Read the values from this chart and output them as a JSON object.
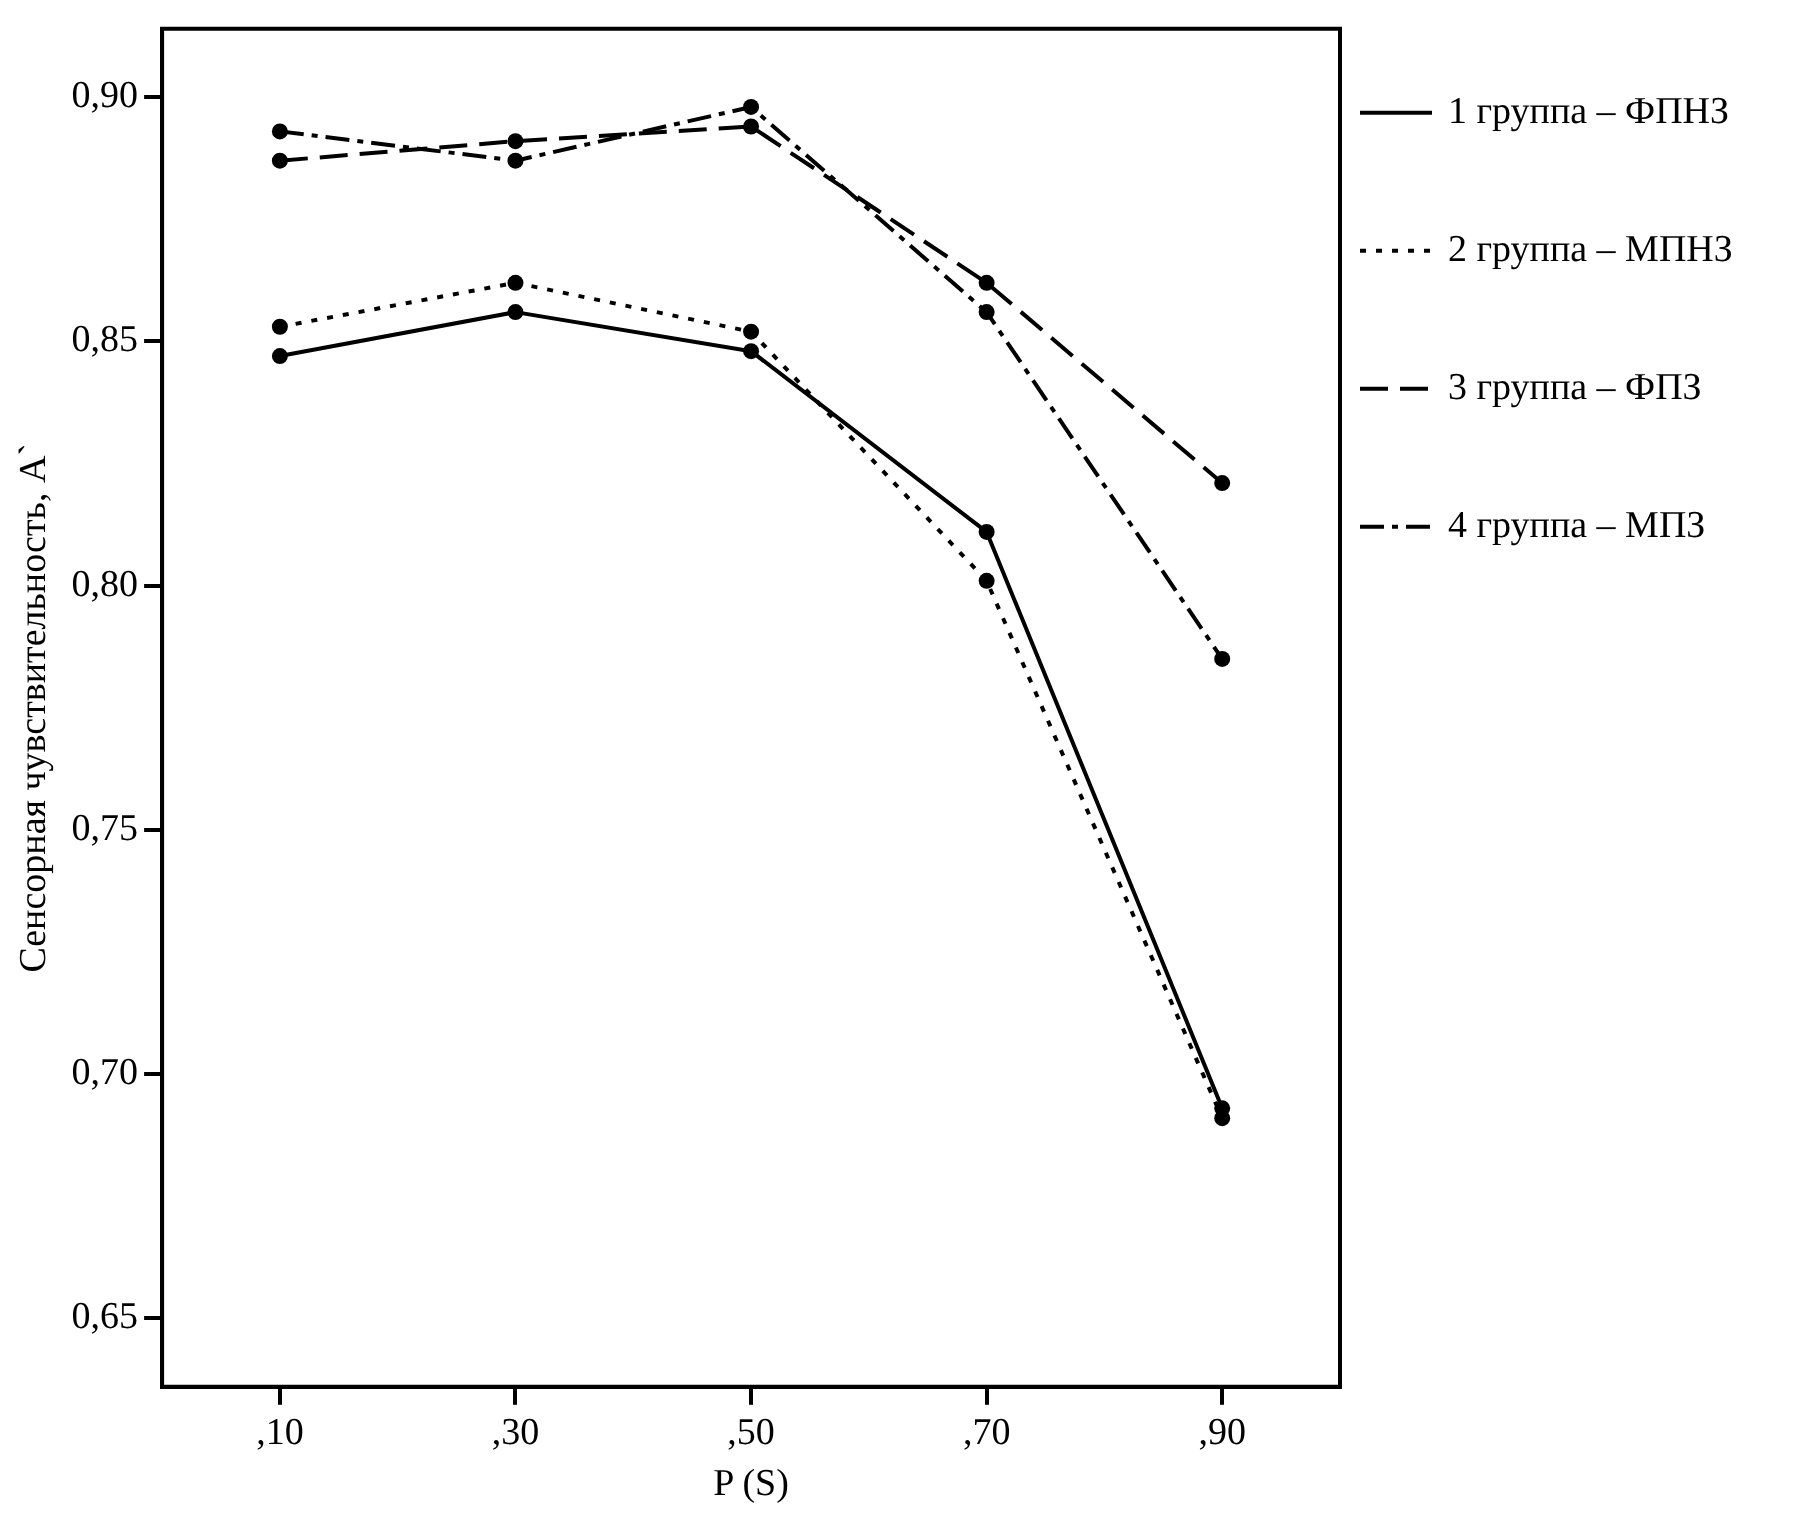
{
  "chart_data": {
    "type": "line",
    "xlabel": "P (S)",
    "ylabel": "Сенсорная чувствительность, A`",
    "categories": [
      ",10",
      ",30",
      ",50",
      ",70",
      ",90"
    ],
    "ylim": [
      0.636,
      0.914
    ],
    "yticks": [
      {
        "value": 0.65,
        "label": "0,65"
      },
      {
        "value": 0.7,
        "label": "0,70"
      },
      {
        "value": 0.75,
        "label": "0,75"
      },
      {
        "value": 0.8,
        "label": "0,80"
      },
      {
        "value": 0.85,
        "label": "0,85"
      },
      {
        "value": 0.9,
        "label": "0,90"
      }
    ],
    "grid": false,
    "legend": "right",
    "marker": "circle",
    "series": [
      {
        "name": "1 группа – ФПНЗ",
        "color": "#000000",
        "line_style": "solid",
        "values": [
          0.847,
          0.856,
          0.848,
          0.811,
          0.693
        ]
      },
      {
        "name": "2 группа – МПНЗ",
        "color": "#000000",
        "line_style": "dotted",
        "values": [
          0.853,
          0.862,
          0.852,
          0.801,
          0.691
        ]
      },
      {
        "name": "3 группа – ФПЗ",
        "color": "#000000",
        "line_style": "dashed",
        "values": [
          0.887,
          0.891,
          0.894,
          0.862,
          0.821
        ]
      },
      {
        "name": "4 группа – МПЗ",
        "color": "#000000",
        "line_style": "dashdot",
        "values": [
          0.893,
          0.887,
          0.898,
          0.856,
          0.785
        ]
      }
    ]
  }
}
